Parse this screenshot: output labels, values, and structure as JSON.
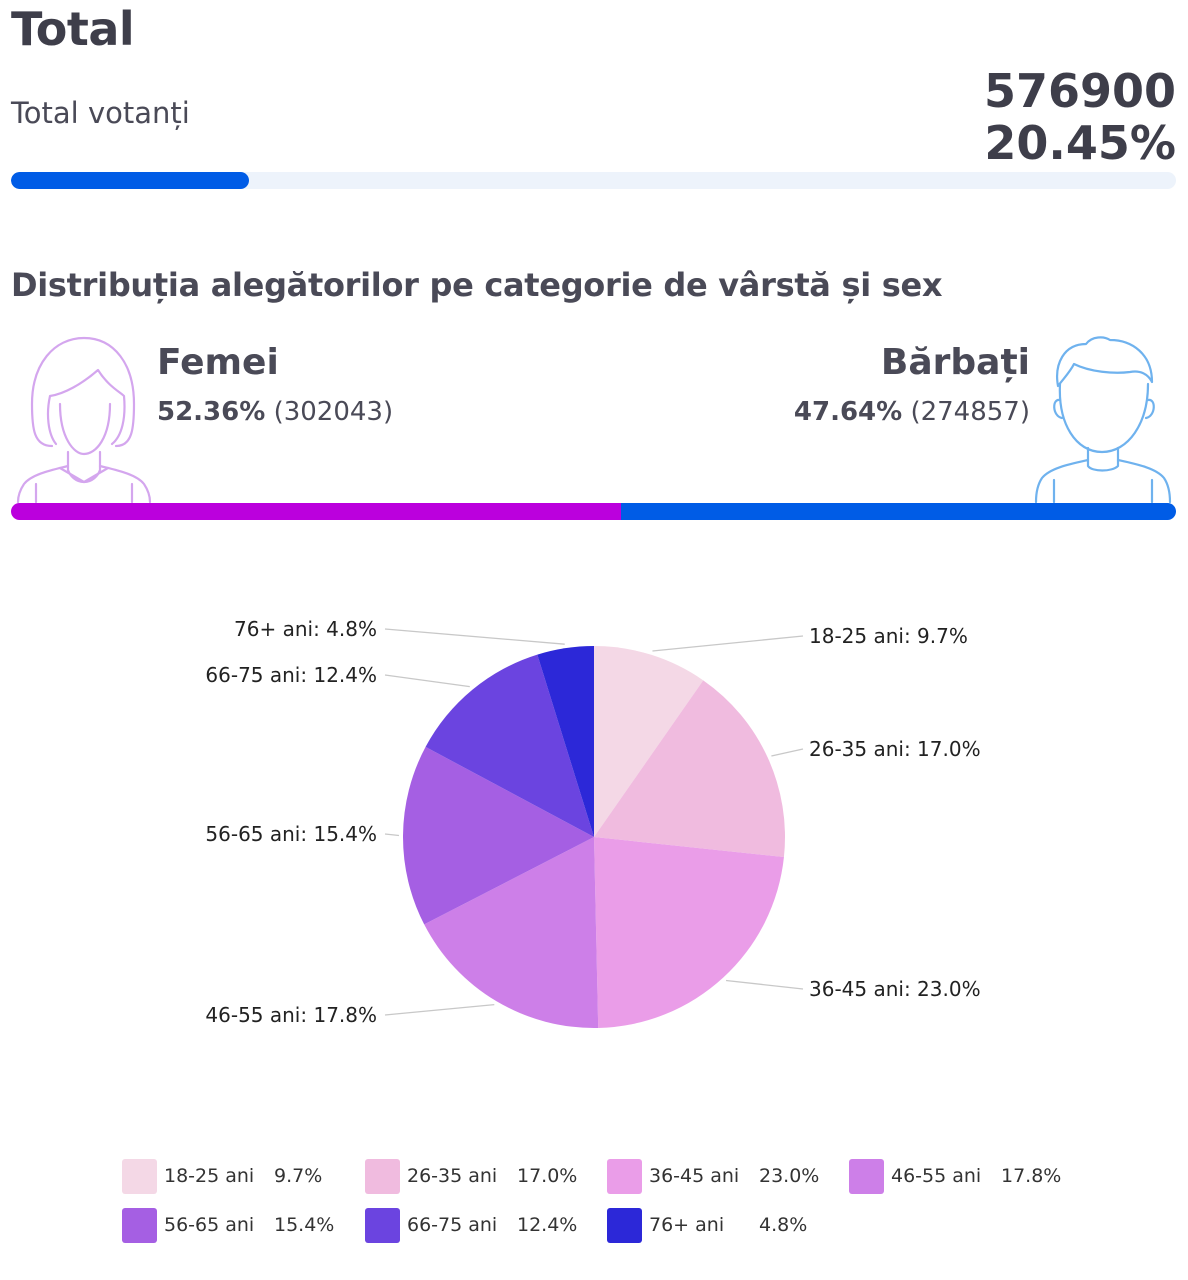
{
  "header": {
    "title": "Total",
    "votanti_label": "Total votanți",
    "votanti_count": "576900",
    "votanti_percent": "20.45%",
    "progress_fraction": 0.2045,
    "progress_color": "#005ce6"
  },
  "section_title": "Distribuția alegătorilor pe categorie de vârstă și sex",
  "gender": {
    "female": {
      "name": "Femei",
      "percent": "52.36%",
      "count": "(302043)",
      "fraction": 0.5236,
      "color": "#bb00dd",
      "icon": "woman-avatar-icon"
    },
    "male": {
      "name": "Bărbați",
      "percent": "47.64%",
      "count": "(274857)",
      "fraction": 0.4764,
      "color": "#005ce6",
      "icon": "man-avatar-icon"
    }
  },
  "chart_data": {
    "type": "pie",
    "title": "",
    "categories": [
      "18-25 ani",
      "26-35 ani",
      "36-45 ani",
      "46-55 ani",
      "56-65 ani",
      "66-75 ani",
      "76+ ani"
    ],
    "values": [
      9.7,
      17.0,
      23.0,
      17.8,
      15.4,
      12.4,
      4.8
    ],
    "value_labels": [
      "9.7%",
      "17.0%",
      "23.0%",
      "17.8%",
      "15.4%",
      "12.4%",
      "4.8%"
    ],
    "slice_labels": [
      "18-25 ani: 9.7%",
      "26-35 ani: 17.0%",
      "36-45 ani: 23.0%",
      "46-55 ani: 17.8%",
      "56-65 ani: 15.4%",
      "66-75 ani: 12.4%",
      "76+ ani: 4.8%"
    ],
    "colors": [
      "#f4d8e6",
      "#f0bbdf",
      "#ea9de8",
      "#cd7fe8",
      "#a55fe3",
      "#6b44e0",
      "#2c28d8"
    ],
    "legend_placement": "bottom"
  }
}
